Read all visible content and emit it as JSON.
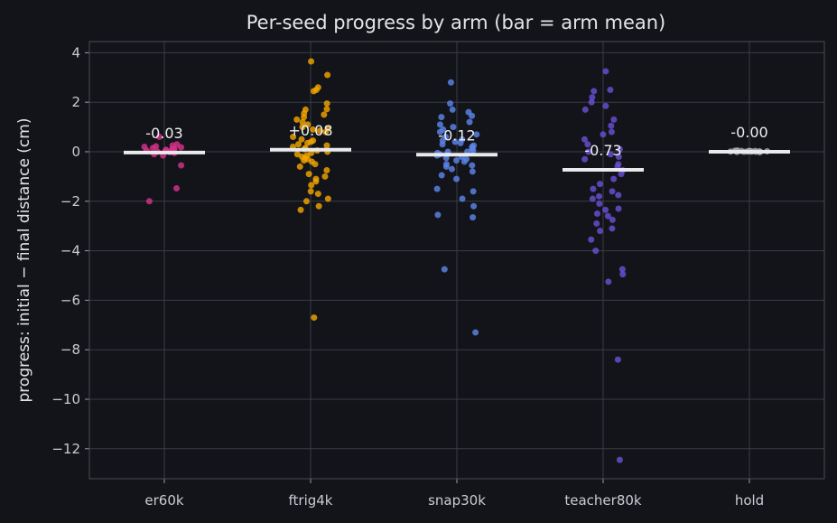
{
  "chart_data": {
    "type": "scatter",
    "title": "Per-seed progress by arm (bar = arm mean)",
    "xlabel": "",
    "ylabel": "progress: initial − final distance (cm)",
    "ylim": [
      -13.3,
      4.5
    ],
    "yticks": [
      4,
      2,
      0,
      -2,
      -4,
      -6,
      -8,
      -10,
      -12
    ],
    "grid": true,
    "categories": [
      "er60k",
      "ftrig4k",
      "snap30k",
      "teacher80k",
      "hold"
    ],
    "series": [
      {
        "category": "er60k",
        "color": "#d6318a",
        "mean": -0.03,
        "mean_label": "-0.03",
        "values": [
          0.2,
          0.18,
          0.22,
          0.15,
          0.1,
          0.05,
          0.0,
          0.12,
          -0.05,
          0.08,
          0.02,
          -0.02,
          0.3,
          -0.1,
          0.6,
          0.25,
          0.1,
          0.05,
          0.0,
          -0.15,
          -0.55,
          -1.48,
          -2.0
        ]
      },
      {
        "category": "ftrig4k",
        "color": "#f0a500",
        "mean": 0.08,
        "mean_label": "+0.08",
        "values": [
          3.65,
          3.1,
          2.6,
          2.5,
          2.45,
          1.95,
          1.72,
          1.7,
          1.55,
          1.5,
          1.4,
          1.3,
          1.2,
          1.1,
          1.0,
          0.95,
          0.9,
          0.85,
          0.8,
          0.6,
          0.5,
          0.45,
          0.4,
          0.35,
          0.3,
          0.25,
          0.2,
          0.15,
          0.1,
          0.05,
          0.0,
          -0.05,
          -0.1,
          -0.15,
          -0.2,
          -0.25,
          -0.3,
          -0.35,
          -0.4,
          -0.5,
          -0.6,
          -0.75,
          -0.9,
          -1.0,
          -1.1,
          -1.2,
          -1.35,
          -1.6,
          -1.7,
          -1.9,
          -2.0,
          -2.2,
          -2.35,
          -6.7
        ]
      },
      {
        "category": "snap30k",
        "color": "#5b84e8",
        "mean": -0.12,
        "mean_label": "-0.12",
        "values": [
          2.8,
          1.95,
          1.7,
          1.6,
          1.45,
          1.4,
          1.2,
          1.1,
          1.0,
          0.9,
          0.8,
          0.7,
          0.6,
          0.5,
          0.45,
          0.4,
          0.35,
          0.3,
          0.25,
          0.2,
          0.15,
          0.1,
          0.05,
          0.0,
          0.0,
          -0.05,
          -0.1,
          -0.1,
          -0.15,
          -0.2,
          -0.25,
          -0.3,
          -0.35,
          -0.4,
          -0.5,
          -0.55,
          -0.6,
          -0.7,
          -0.8,
          -0.95,
          -1.1,
          -1.5,
          -1.6,
          -1.9,
          -2.2,
          -2.55,
          -2.65,
          -4.75,
          -7.3
        ]
      },
      {
        "category": "teacher80k",
        "color": "#6a4fd6",
        "mean": -0.73,
        "mean_label": "-0.73",
        "values": [
          3.25,
          2.5,
          2.45,
          2.2,
          2.0,
          1.85,
          1.7,
          1.3,
          1.05,
          0.8,
          0.7,
          0.5,
          0.3,
          0.1,
          0.0,
          -0.1,
          -0.2,
          -0.3,
          -0.5,
          -0.6,
          -0.75,
          -0.9,
          -1.1,
          -1.3,
          -1.5,
          -1.6,
          -1.75,
          -1.8,
          -1.9,
          -2.1,
          -2.3,
          -2.35,
          -2.5,
          -2.6,
          -2.75,
          -2.9,
          -3.1,
          -3.2,
          -3.55,
          -4.0,
          -4.75,
          -4.95,
          -5.25,
          -8.4,
          -12.45
        ]
      },
      {
        "category": "hold",
        "color": "#a6a8ae",
        "mean": -0.0,
        "mean_label": "-0.00",
        "values": [
          0.05,
          0.03,
          0.04,
          0.02,
          0.01,
          0.0,
          0.02,
          0.03,
          -0.01,
          0.01,
          0.04,
          0.0,
          0.02,
          0.01,
          0.03,
          -0.02,
          0.0,
          0.02,
          0.01,
          0.03
        ]
      }
    ]
  }
}
